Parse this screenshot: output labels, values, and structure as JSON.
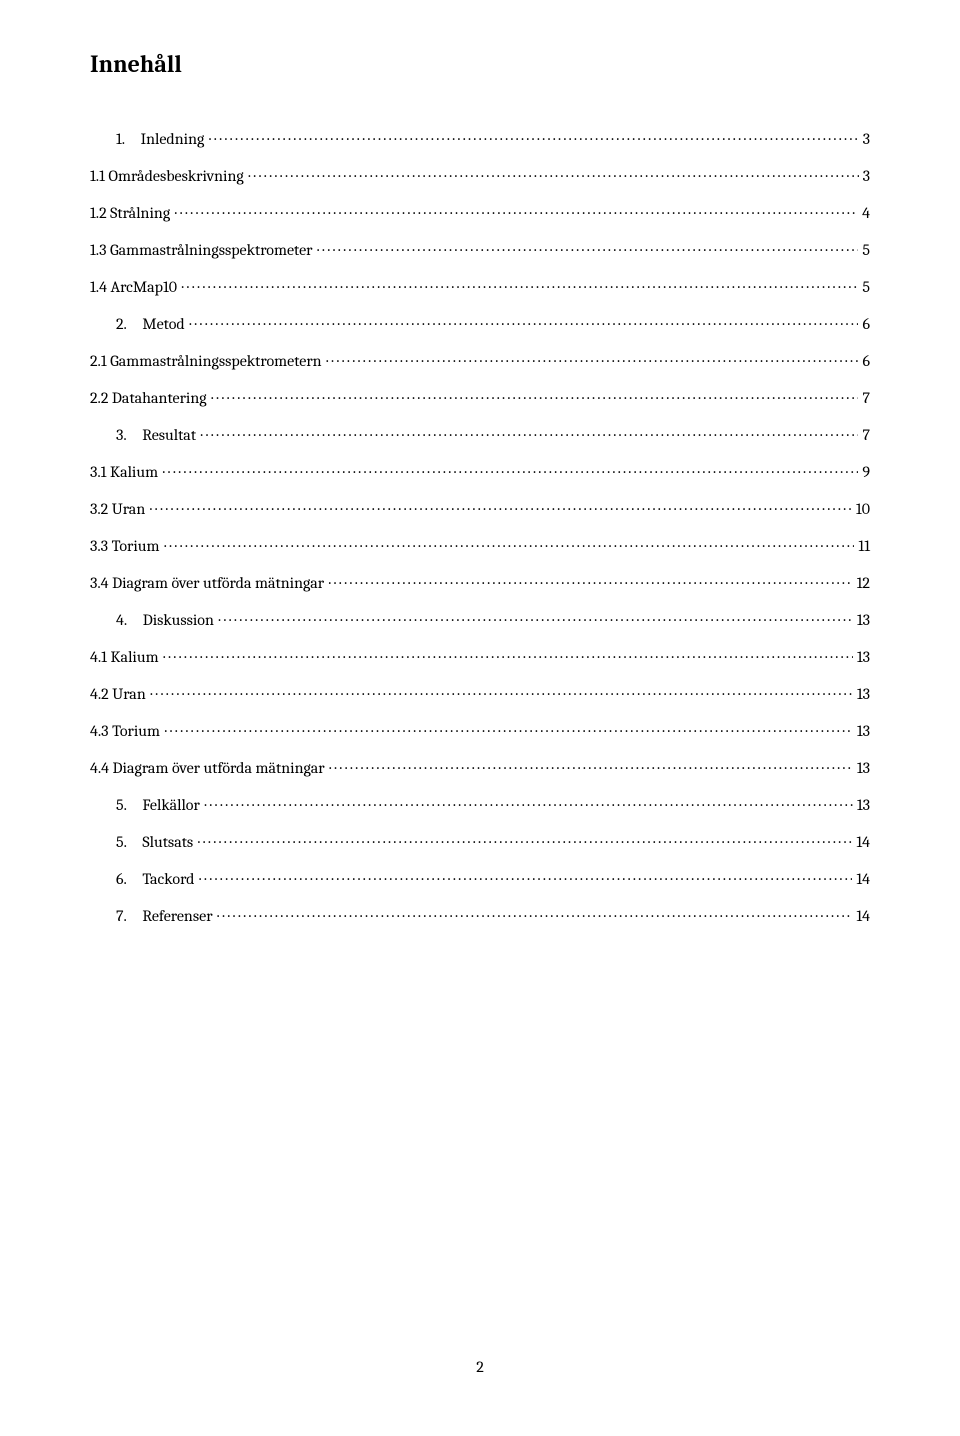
{
  "title": "Innehåll",
  "page_number": "2",
  "toc": [
    {
      "indent": 26,
      "label": "1. Inledning",
      "page": "3"
    },
    {
      "indent": 0,
      "label": "1.1 Områdesbeskrivning",
      "page": "3"
    },
    {
      "indent": 0,
      "label": "1.2 Strålning",
      "page": "4"
    },
    {
      "indent": 0,
      "label": "1.3 Gammastrålningsspektrometer",
      "page": "5"
    },
    {
      "indent": 0,
      "label": "1.4 ArcMap10",
      "page": "5"
    },
    {
      "indent": 26,
      "label": "2. Metod",
      "page": "6"
    },
    {
      "indent": 0,
      "label": "2.1 Gammastrålningsspektrometern",
      "page": "6"
    },
    {
      "indent": 0,
      "label": "2.2 Datahantering",
      "page": "7"
    },
    {
      "indent": 26,
      "label": "3. Resultat",
      "page": "7"
    },
    {
      "indent": 0,
      "label": "3.1 Kalium",
      "page": "9"
    },
    {
      "indent": 0,
      "label": "3.2 Uran",
      "page": "10"
    },
    {
      "indent": 0,
      "label": "3.3 Torium",
      "page": "11"
    },
    {
      "indent": 0,
      "label": "3.4 Diagram över utförda mätningar",
      "page": "12"
    },
    {
      "indent": 26,
      "label": "4. Diskussion",
      "page": "13"
    },
    {
      "indent": 0,
      "label": "4.1 Kalium",
      "page": "13"
    },
    {
      "indent": 0,
      "label": "4.2 Uran",
      "page": "13"
    },
    {
      "indent": 0,
      "label": "4.3 Torium",
      "page": "13"
    },
    {
      "indent": 0,
      "label": "4.4 Diagram över utförda mätningar",
      "page": "13"
    },
    {
      "indent": 26,
      "label": "5. Felkällor",
      "page": "13"
    },
    {
      "indent": 26,
      "label": "5. Slutsats",
      "page": "14"
    },
    {
      "indent": 26,
      "label": "6. Tackord",
      "page": "14"
    },
    {
      "indent": 26,
      "label": "7. Referenser",
      "page": "14"
    }
  ]
}
